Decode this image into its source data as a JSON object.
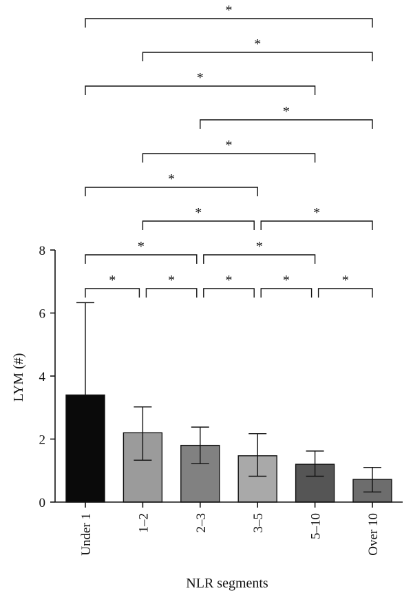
{
  "chart_data": {
    "type": "bar",
    "xlabel": "NLR segments",
    "ylabel": "LYM (#)",
    "ylim": [
      0,
      8
    ],
    "yticks": [
      "0",
      "2",
      "4",
      "6",
      "8"
    ],
    "categories": [
      "Under 1",
      "1–2",
      "2–3",
      "3–5",
      "5–10",
      "Over 10"
    ],
    "values": [
      3.4,
      2.2,
      1.8,
      1.47,
      1.2,
      0.72
    ],
    "error_high": [
      6.33,
      3.02,
      2.38,
      2.17,
      1.62,
      1.1
    ],
    "error_low": [
      3.4,
      1.33,
      1.22,
      0.82,
      0.82,
      0.32
    ],
    "bar_colors": [
      "#0a0a0a",
      "#9b9b9b",
      "#818181",
      "#a9a9a9",
      "#555555",
      "#6d6d6d"
    ],
    "significance": [
      {
        "from": 0,
        "to": 1,
        "label": "*"
      },
      {
        "from": 1,
        "to": 2,
        "label": "*"
      },
      {
        "from": 2,
        "to": 3,
        "label": "*"
      },
      {
        "from": 3,
        "to": 4,
        "label": "*"
      },
      {
        "from": 4,
        "to": 5,
        "label": "*"
      },
      {
        "from": 0,
        "to": 2,
        "label": "*"
      },
      {
        "from": 2,
        "to": 4,
        "label": "*"
      },
      {
        "from": 1,
        "to": 3,
        "label": "*"
      },
      {
        "from": 3,
        "to": 5,
        "label": "*"
      },
      {
        "from": 0,
        "to": 3,
        "label": "*"
      },
      {
        "from": 1,
        "to": 4,
        "label": "*"
      },
      {
        "from": 2,
        "to": 5,
        "label": "*"
      },
      {
        "from": 0,
        "to": 4,
        "label": "*"
      },
      {
        "from": 1,
        "to": 5,
        "label": "*"
      },
      {
        "from": 0,
        "to": 5,
        "label": "*"
      }
    ]
  }
}
